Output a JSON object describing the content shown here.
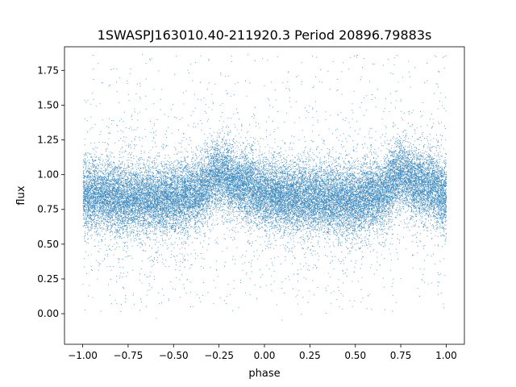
{
  "chart_data": {
    "type": "scatter",
    "title": "1SWASPJ163010.40-211920.3 Period 20896.79883s",
    "xlabel": "phase",
    "ylabel": "flux",
    "xlim": [
      -1.1,
      1.1
    ],
    "ylim": [
      -0.22,
      1.92
    ],
    "x_ticks": [
      -1.0,
      -0.75,
      -0.5,
      -0.25,
      0.0,
      0.25,
      0.5,
      0.75,
      1.0
    ],
    "x_tick_labels": [
      "−1.00",
      "−0.75",
      "−0.50",
      "−0.25",
      "0.00",
      "0.25",
      "0.50",
      "0.75",
      "1.00"
    ],
    "y_ticks": [
      0.0,
      0.25,
      0.5,
      0.75,
      1.0,
      1.25,
      1.5,
      1.75
    ],
    "y_tick_labels": [
      "0.00",
      "0.25",
      "0.50",
      "0.75",
      "1.00",
      "1.25",
      "1.50",
      "1.75"
    ],
    "grid": false,
    "legend": "none",
    "point_color": "#1f77b4",
    "phase_range": [
      -1.0,
      1.0
    ],
    "flux_profile": {
      "phase": [
        -1.0,
        -0.75,
        -0.5,
        -0.38,
        -0.25,
        -0.12,
        0.0,
        0.25,
        0.5,
        0.62,
        0.75,
        0.88,
        1.0
      ],
      "mean_flux": [
        0.86,
        0.83,
        0.82,
        0.86,
        1.0,
        0.93,
        0.86,
        0.83,
        0.82,
        0.86,
        1.0,
        0.93,
        0.86
      ]
    },
    "flux_scatter": 0.12,
    "approx_point_count": 30000
  }
}
